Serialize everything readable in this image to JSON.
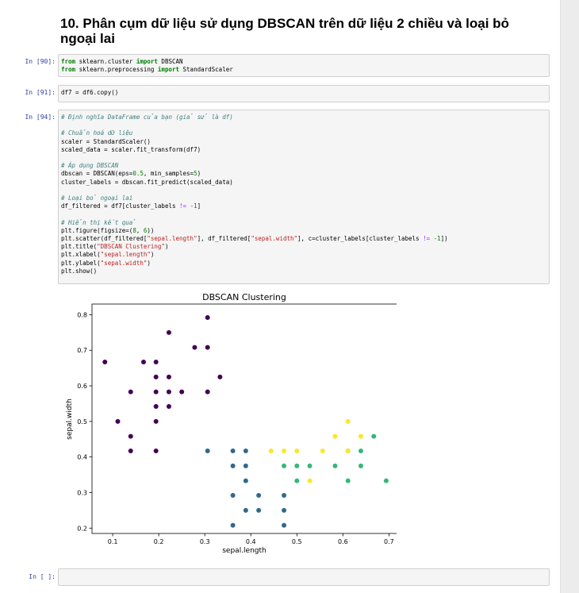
{
  "notebook": {
    "heading": "10. Phân cụm dữ liệu sử dụng DBSCAN trên dữ liệu 2 chiều và loại bỏ ngoại lai",
    "cells": [
      {
        "prompt": "In [90]:"
      },
      {
        "prompt": "In [91]:"
      },
      {
        "prompt": "In [94]:"
      },
      {
        "prompt": "In [ ]:"
      }
    ]
  },
  "code": {
    "c90": {
      "l1": {
        "a": "from",
        "b": " sklearn.cluster ",
        "c": "import",
        "d": " DBSCAN"
      },
      "l2": {
        "a": "from",
        "b": " sklearn.preprocessing ",
        "c": "import",
        "d": " StandardScaler"
      }
    },
    "c91": {
      "line": "df7 = df6.copy()"
    },
    "c94": {
      "c1": "# Định nghĩa DataFrame của bạn (giả sử là df)",
      "c2": "# Chuẩn hoá dữ liệu",
      "l3": "scaler = StandardScaler()",
      "l4": "scaled_data = scaler.fit_transform(df7)",
      "c5": "# Áp dụng DBSCAN",
      "l6a": "dbscan = DBSCAN(eps=",
      "l6b": "0.5",
      "l6c": ", min_samples=",
      "l6d": "5",
      "l6e": ")",
      "l7": "cluster_labels = dbscan.fit_predict(scaled_data)",
      "c8": "# Loại bỏ ngoại lai",
      "l9a": "df_filtered = df7[cluster_labels ",
      "l9b": "!=",
      "l9c": " ",
      "l9d": "-1",
      "l9e": "]",
      "c10": "# Hiển thị kết quả",
      "l11a": "plt.figure(figsize=(",
      "l11b": "8",
      "l11c": ", ",
      "l11d": "6",
      "l11e": "))",
      "l12a": "plt.scatter(df_filtered[",
      "l12b": "\"sepal.length\"",
      "l12c": "], df_filtered[",
      "l12d": "\"sepal.width\"",
      "l12e": "], c=cluster_labels[cluster_labels ",
      "l12f": "!=",
      "l12g": " ",
      "l12h": "-1",
      "l12i": "])",
      "l13a": "plt.title(",
      "l13b": "\"DBSCAN Clustering\"",
      "l13c": ")",
      "l14a": "plt.xlabel(",
      "l14b": "\"sepal.length\"",
      "l14c": ")",
      "l15a": "plt.ylabel(",
      "l15b": "\"sepal.width\"",
      "l15c": ")",
      "l16": "plt.show()"
    }
  },
  "chart_data": {
    "type": "scatter",
    "title": "DBSCAN Clustering",
    "xlabel": "sepal.length",
    "ylabel": "sepal.width",
    "xlim": [
      0.055,
      0.72
    ],
    "ylim": [
      0.185,
      0.83
    ],
    "xticks": [
      0.1,
      0.2,
      0.3,
      0.4,
      0.5,
      0.6,
      0.7
    ],
    "yticks": [
      0.2,
      0.3,
      0.4,
      0.5,
      0.6,
      0.7,
      0.8
    ],
    "grid": false,
    "legend": "none",
    "series": [
      {
        "color": "#440154",
        "points": [
          [
            0.083,
            0.667
          ],
          [
            0.111,
            0.5
          ],
          [
            0.139,
            0.583
          ],
          [
            0.139,
            0.458
          ],
          [
            0.139,
            0.417
          ],
          [
            0.167,
            0.667
          ],
          [
            0.194,
            0.667
          ],
          [
            0.194,
            0.625
          ],
          [
            0.194,
            0.583
          ],
          [
            0.194,
            0.542
          ],
          [
            0.194,
            0.5
          ],
          [
            0.194,
            0.417
          ],
          [
            0.222,
            0.75
          ],
          [
            0.222,
            0.625
          ],
          [
            0.222,
            0.583
          ],
          [
            0.222,
            0.542
          ],
          [
            0.25,
            0.583
          ],
          [
            0.278,
            0.708
          ],
          [
            0.306,
            0.792
          ],
          [
            0.306,
            0.708
          ],
          [
            0.306,
            0.583
          ],
          [
            0.333,
            0.625
          ]
        ]
      },
      {
        "color": "#31688e",
        "points": [
          [
            0.306,
            0.417
          ],
          [
            0.361,
            0.417
          ],
          [
            0.361,
            0.375
          ],
          [
            0.361,
            0.292
          ],
          [
            0.361,
            0.208
          ],
          [
            0.389,
            0.417
          ],
          [
            0.389,
            0.375
          ],
          [
            0.389,
            0.333
          ],
          [
            0.389,
            0.25
          ],
          [
            0.417,
            0.292
          ],
          [
            0.417,
            0.25
          ],
          [
            0.472,
            0.292
          ],
          [
            0.472,
            0.25
          ],
          [
            0.472,
            0.208
          ]
        ]
      },
      {
        "color": "#35b779",
        "points": [
          [
            0.472,
            0.375
          ],
          [
            0.5,
            0.375
          ],
          [
            0.5,
            0.333
          ],
          [
            0.528,
            0.375
          ],
          [
            0.583,
            0.375
          ],
          [
            0.611,
            0.417
          ],
          [
            0.611,
            0.333
          ],
          [
            0.639,
            0.417
          ],
          [
            0.639,
            0.375
          ],
          [
            0.667,
            0.458
          ],
          [
            0.694,
            0.333
          ]
        ]
      },
      {
        "color": "#fde725",
        "points": [
          [
            0.444,
            0.417
          ],
          [
            0.472,
            0.417
          ],
          [
            0.5,
            0.417
          ],
          [
            0.528,
            0.333
          ],
          [
            0.556,
            0.417
          ],
          [
            0.583,
            0.458
          ],
          [
            0.611,
            0.5
          ],
          [
            0.611,
            0.417
          ],
          [
            0.639,
            0.458
          ]
        ]
      }
    ]
  }
}
